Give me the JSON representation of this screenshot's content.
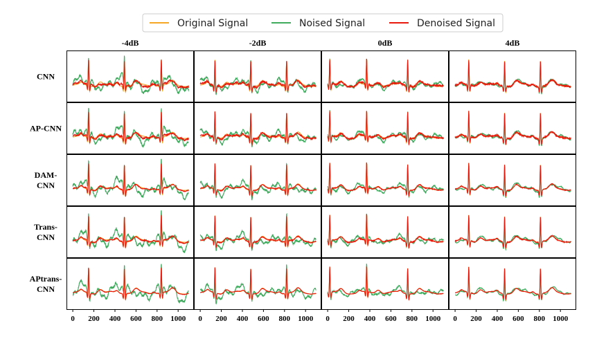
{
  "chart_data": {
    "type": "line",
    "layout": "grid",
    "legend": {
      "placement": "top-center",
      "entries": [
        {
          "name": "Original Signal",
          "color": "#f5a623"
        },
        {
          "name": "Noised Signal",
          "color": "#3daa5c"
        },
        {
          "name": "Denoised Signal",
          "color": "#e8180c"
        }
      ]
    },
    "columns": [
      "-4dB",
      "-2dB",
      "0dB",
      "4dB"
    ],
    "rows": [
      {
        "label_lines": [
          "CNN"
        ]
      },
      {
        "label_lines": [
          "AP-CNN"
        ]
      },
      {
        "label_lines": [
          "DAM-",
          "CNN"
        ]
      },
      {
        "label_lines": [
          "Trans-",
          "CNN"
        ]
      },
      {
        "label_lines": [
          "APtrans-",
          "CNN"
        ]
      }
    ],
    "xlim": [
      -60,
      1150
    ],
    "xticks": [
      0,
      200,
      400,
      600,
      800,
      1000
    ],
    "xtick_labels": [
      "0",
      "200",
      "400",
      "600",
      "800",
      "1000"
    ],
    "peaks_by_column": [
      [
        150,
        490,
        840
      ],
      [
        140,
        480,
        820
      ],
      [
        20,
        370,
        760
      ],
      [
        130,
        470,
        810
      ]
    ],
    "noise_level_by_column": [
      1.0,
      0.75,
      0.5,
      0.3
    ],
    "denoise_residual_by_row": [
      0.75,
      0.65,
      0.3,
      0.35,
      0.15
    ]
  }
}
